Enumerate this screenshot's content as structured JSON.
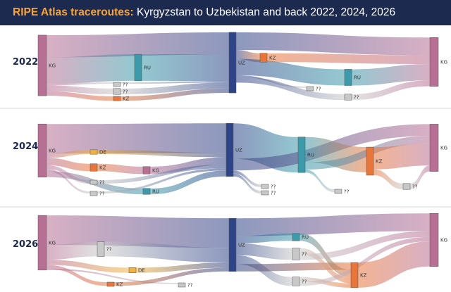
{
  "header": {
    "title_accent": "RIPE Atlas traceroutes:",
    "title_rest": " Kyrgyzstan to Uzbekistan and back 2022, 2024, 2026"
  },
  "colors": {
    "header_bg": "#1d2a4f",
    "accent": "#f6a33a",
    "KG": "#b86f94",
    "UZ": "#2e4487",
    "RU": "#3c9aaa",
    "KZ": "#e8763a",
    "DE": "#f1b242",
    "unknown": "#c8c8c8"
  },
  "chart_data": [
    {
      "type": "sankey",
      "year": "2022",
      "nodes": [
        {
          "id": "kg_src",
          "label": "KG",
          "color": "KG"
        },
        {
          "id": "ru1",
          "label": "RU",
          "color": "RU"
        },
        {
          "id": "q1",
          "label": "??",
          "color": "unknown"
        },
        {
          "id": "q2",
          "label": "??",
          "color": "unknown"
        },
        {
          "id": "kz1",
          "label": "KZ",
          "color": "KZ"
        },
        {
          "id": "uz",
          "label": "UZ",
          "color": "UZ"
        },
        {
          "id": "kz2",
          "label": "KZ",
          "color": "KZ"
        },
        {
          "id": "ru2",
          "label": "RU",
          "color": "RU"
        },
        {
          "id": "q3",
          "label": "??",
          "color": "unknown"
        },
        {
          "id": "q4",
          "label": "??",
          "color": "unknown"
        },
        {
          "id": "kg_dst",
          "label": "KG",
          "color": "KG"
        }
      ],
      "links": [
        {
          "source": "kg_src",
          "target": "uz",
          "value": 30
        },
        {
          "source": "kg_src",
          "target": "ru1",
          "value": 36
        },
        {
          "source": "kg_src",
          "target": "q1",
          "value": 2
        },
        {
          "source": "kg_src",
          "target": "q2",
          "value": 8
        },
        {
          "source": "kg_src",
          "target": "kz1",
          "value": 6
        },
        {
          "source": "ru1",
          "target": "uz",
          "value": 36
        },
        {
          "source": "q1",
          "target": "uz",
          "value": 2
        },
        {
          "source": "q2",
          "target": "uz",
          "value": 8
        },
        {
          "source": "kz1",
          "target": "uz",
          "value": 6
        },
        {
          "source": "uz",
          "target": "kg_dst",
          "value": 24
        },
        {
          "source": "uz",
          "target": "kz2",
          "value": 12
        },
        {
          "source": "uz",
          "target": "ru2",
          "value": 22
        },
        {
          "source": "uz",
          "target": "q3",
          "value": 2
        },
        {
          "source": "uz",
          "target": "q4",
          "value": 8
        },
        {
          "source": "kz2",
          "target": "kg_dst",
          "value": 12
        },
        {
          "source": "ru2",
          "target": "kg_dst",
          "value": 22
        },
        {
          "source": "q4",
          "target": "kg_dst",
          "value": 8
        }
      ]
    },
    {
      "type": "sankey",
      "year": "2024",
      "nodes": [
        {
          "id": "kg_src",
          "label": "KG",
          "color": "KG"
        },
        {
          "id": "de",
          "label": "DE",
          "color": "DE"
        },
        {
          "id": "kz1",
          "label": "KZ",
          "color": "KZ"
        },
        {
          "id": "q1",
          "label": "??",
          "color": "unknown"
        },
        {
          "id": "q2",
          "label": "??",
          "color": "unknown"
        },
        {
          "id": "kg_mid",
          "label": "KG",
          "color": "KG"
        },
        {
          "id": "ru1",
          "label": "RU",
          "color": "RU"
        },
        {
          "id": "uz",
          "label": "UZ",
          "color": "UZ"
        },
        {
          "id": "ru2",
          "label": "RU",
          "color": "RU"
        },
        {
          "id": "q3",
          "label": "??",
          "color": "unknown"
        },
        {
          "id": "q4",
          "label": "??",
          "color": "unknown"
        },
        {
          "id": "q5",
          "label": "??",
          "color": "unknown"
        },
        {
          "id": "kz2",
          "label": "KZ",
          "color": "KZ"
        },
        {
          "id": "q6",
          "label": "??",
          "color": "unknown"
        },
        {
          "id": "kg_dst",
          "label": "KG",
          "color": "KG"
        }
      ],
      "links": [
        {
          "source": "kg_src",
          "target": "uz",
          "value": 40
        },
        {
          "source": "kg_src",
          "target": "de",
          "value": 6
        },
        {
          "source": "kg_src",
          "target": "kz1",
          "value": 10
        },
        {
          "source": "kg_src",
          "target": "q1",
          "value": 5
        },
        {
          "source": "kg_src",
          "target": "q2",
          "value": 3
        },
        {
          "source": "kg_src",
          "target": "ru1",
          "value": 8
        },
        {
          "source": "de",
          "target": "uz",
          "value": 6
        },
        {
          "source": "kz1",
          "target": "kg_mid",
          "value": 10
        },
        {
          "source": "kg_mid",
          "target": "uz",
          "value": 10
        },
        {
          "source": "q1",
          "target": "uz",
          "value": 5
        },
        {
          "source": "q2",
          "target": "uz",
          "value": 3
        },
        {
          "source": "ru1",
          "target": "uz",
          "value": 8
        },
        {
          "source": "uz",
          "target": "ru2",
          "value": 48
        },
        {
          "source": "uz",
          "target": "kg_dst",
          "value": 16
        },
        {
          "source": "uz",
          "target": "q3",
          "value": 4
        },
        {
          "source": "uz",
          "target": "q4",
          "value": 4
        },
        {
          "source": "ru2",
          "target": "kz2",
          "value": 34
        },
        {
          "source": "ru2",
          "target": "kg_dst",
          "value": 10
        },
        {
          "source": "ru2",
          "target": "q5",
          "value": 4
        },
        {
          "source": "kz2",
          "target": "kg_dst",
          "value": 30
        },
        {
          "source": "kz2",
          "target": "q6",
          "value": 8
        },
        {
          "source": "q6",
          "target": "kg_dst",
          "value": 8
        }
      ]
    },
    {
      "type": "sankey",
      "year": "2026",
      "nodes": [
        {
          "id": "kg_src",
          "label": "KG",
          "color": "KG"
        },
        {
          "id": "q1",
          "label": "??",
          "color": "unknown"
        },
        {
          "id": "de",
          "label": "DE",
          "color": "DE"
        },
        {
          "id": "kz1",
          "label": "KZ",
          "color": "KZ"
        },
        {
          "id": "q2",
          "label": "??",
          "color": "unknown"
        },
        {
          "id": "uz",
          "label": "UZ",
          "color": "UZ"
        },
        {
          "id": "ru",
          "label": "RU",
          "color": "RU"
        },
        {
          "id": "q3",
          "label": "??",
          "color": "unknown"
        },
        {
          "id": "q4",
          "label": "??",
          "color": "unknown"
        },
        {
          "id": "kz2",
          "label": "KZ",
          "color": "KZ"
        },
        {
          "id": "kg_dst",
          "label": "KG",
          "color": "KG"
        }
      ],
      "links": [
        {
          "source": "kg_src",
          "target": "uz",
          "value": 40
        },
        {
          "source": "kg_src",
          "target": "q1",
          "value": 20
        },
        {
          "source": "kg_src",
          "target": "de",
          "value": 7
        },
        {
          "source": "kg_src",
          "target": "kz1",
          "value": 5
        },
        {
          "source": "kg_src",
          "target": "q2",
          "value": 2
        },
        {
          "source": "q1",
          "target": "uz",
          "value": 20
        },
        {
          "source": "de",
          "target": "uz",
          "value": 7
        },
        {
          "source": "kz1",
          "target": "uz",
          "value": 5
        },
        {
          "source": "uz",
          "target": "kg_dst",
          "value": 24
        },
        {
          "source": "uz",
          "target": "ru",
          "value": 10
        },
        {
          "source": "uz",
          "target": "q3",
          "value": 16
        },
        {
          "source": "uz",
          "target": "q4",
          "value": 12
        },
        {
          "source": "uz",
          "target": "kz2",
          "value": 10
        },
        {
          "source": "ru",
          "target": "kz2",
          "value": 10
        },
        {
          "source": "q3",
          "target": "kz2",
          "value": 8
        },
        {
          "source": "q3",
          "target": "kg_dst",
          "value": 8
        },
        {
          "source": "q4",
          "target": "kz2",
          "value": 6
        },
        {
          "source": "q4",
          "target": "kg_dst",
          "value": 6
        },
        {
          "source": "kz2",
          "target": "kg_dst",
          "value": 34
        }
      ]
    }
  ]
}
